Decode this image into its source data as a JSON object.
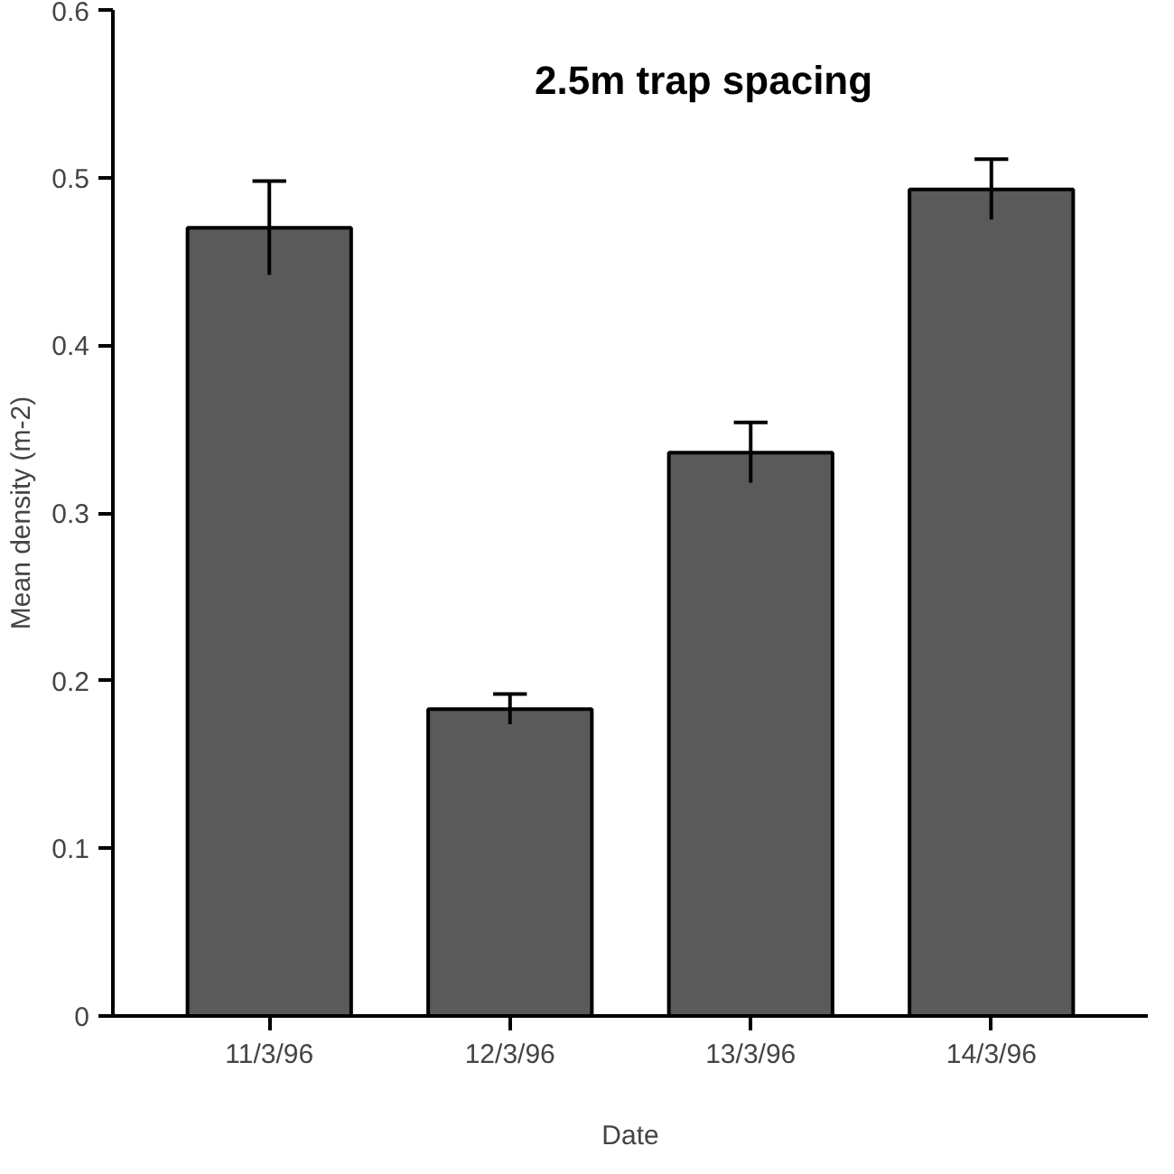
{
  "chart_data": {
    "type": "bar",
    "title": "2.5m  trap  spacing",
    "xlabel": "Date",
    "ylabel": "Mean density (m-2)",
    "categories": [
      "11/3/96",
      "12/3/96",
      "13/3/96",
      "14/3/96"
    ],
    "values": [
      0.47,
      0.183,
      0.336,
      0.493
    ],
    "errors": [
      0.028,
      0.009,
      0.018,
      0.018
    ],
    "color": "#5a5a5a",
    "ylim": [
      0,
      0.6
    ],
    "yticks": [
      0,
      0.1,
      0.2,
      0.3,
      0.4,
      0.5,
      0.6
    ],
    "grid": false
  }
}
